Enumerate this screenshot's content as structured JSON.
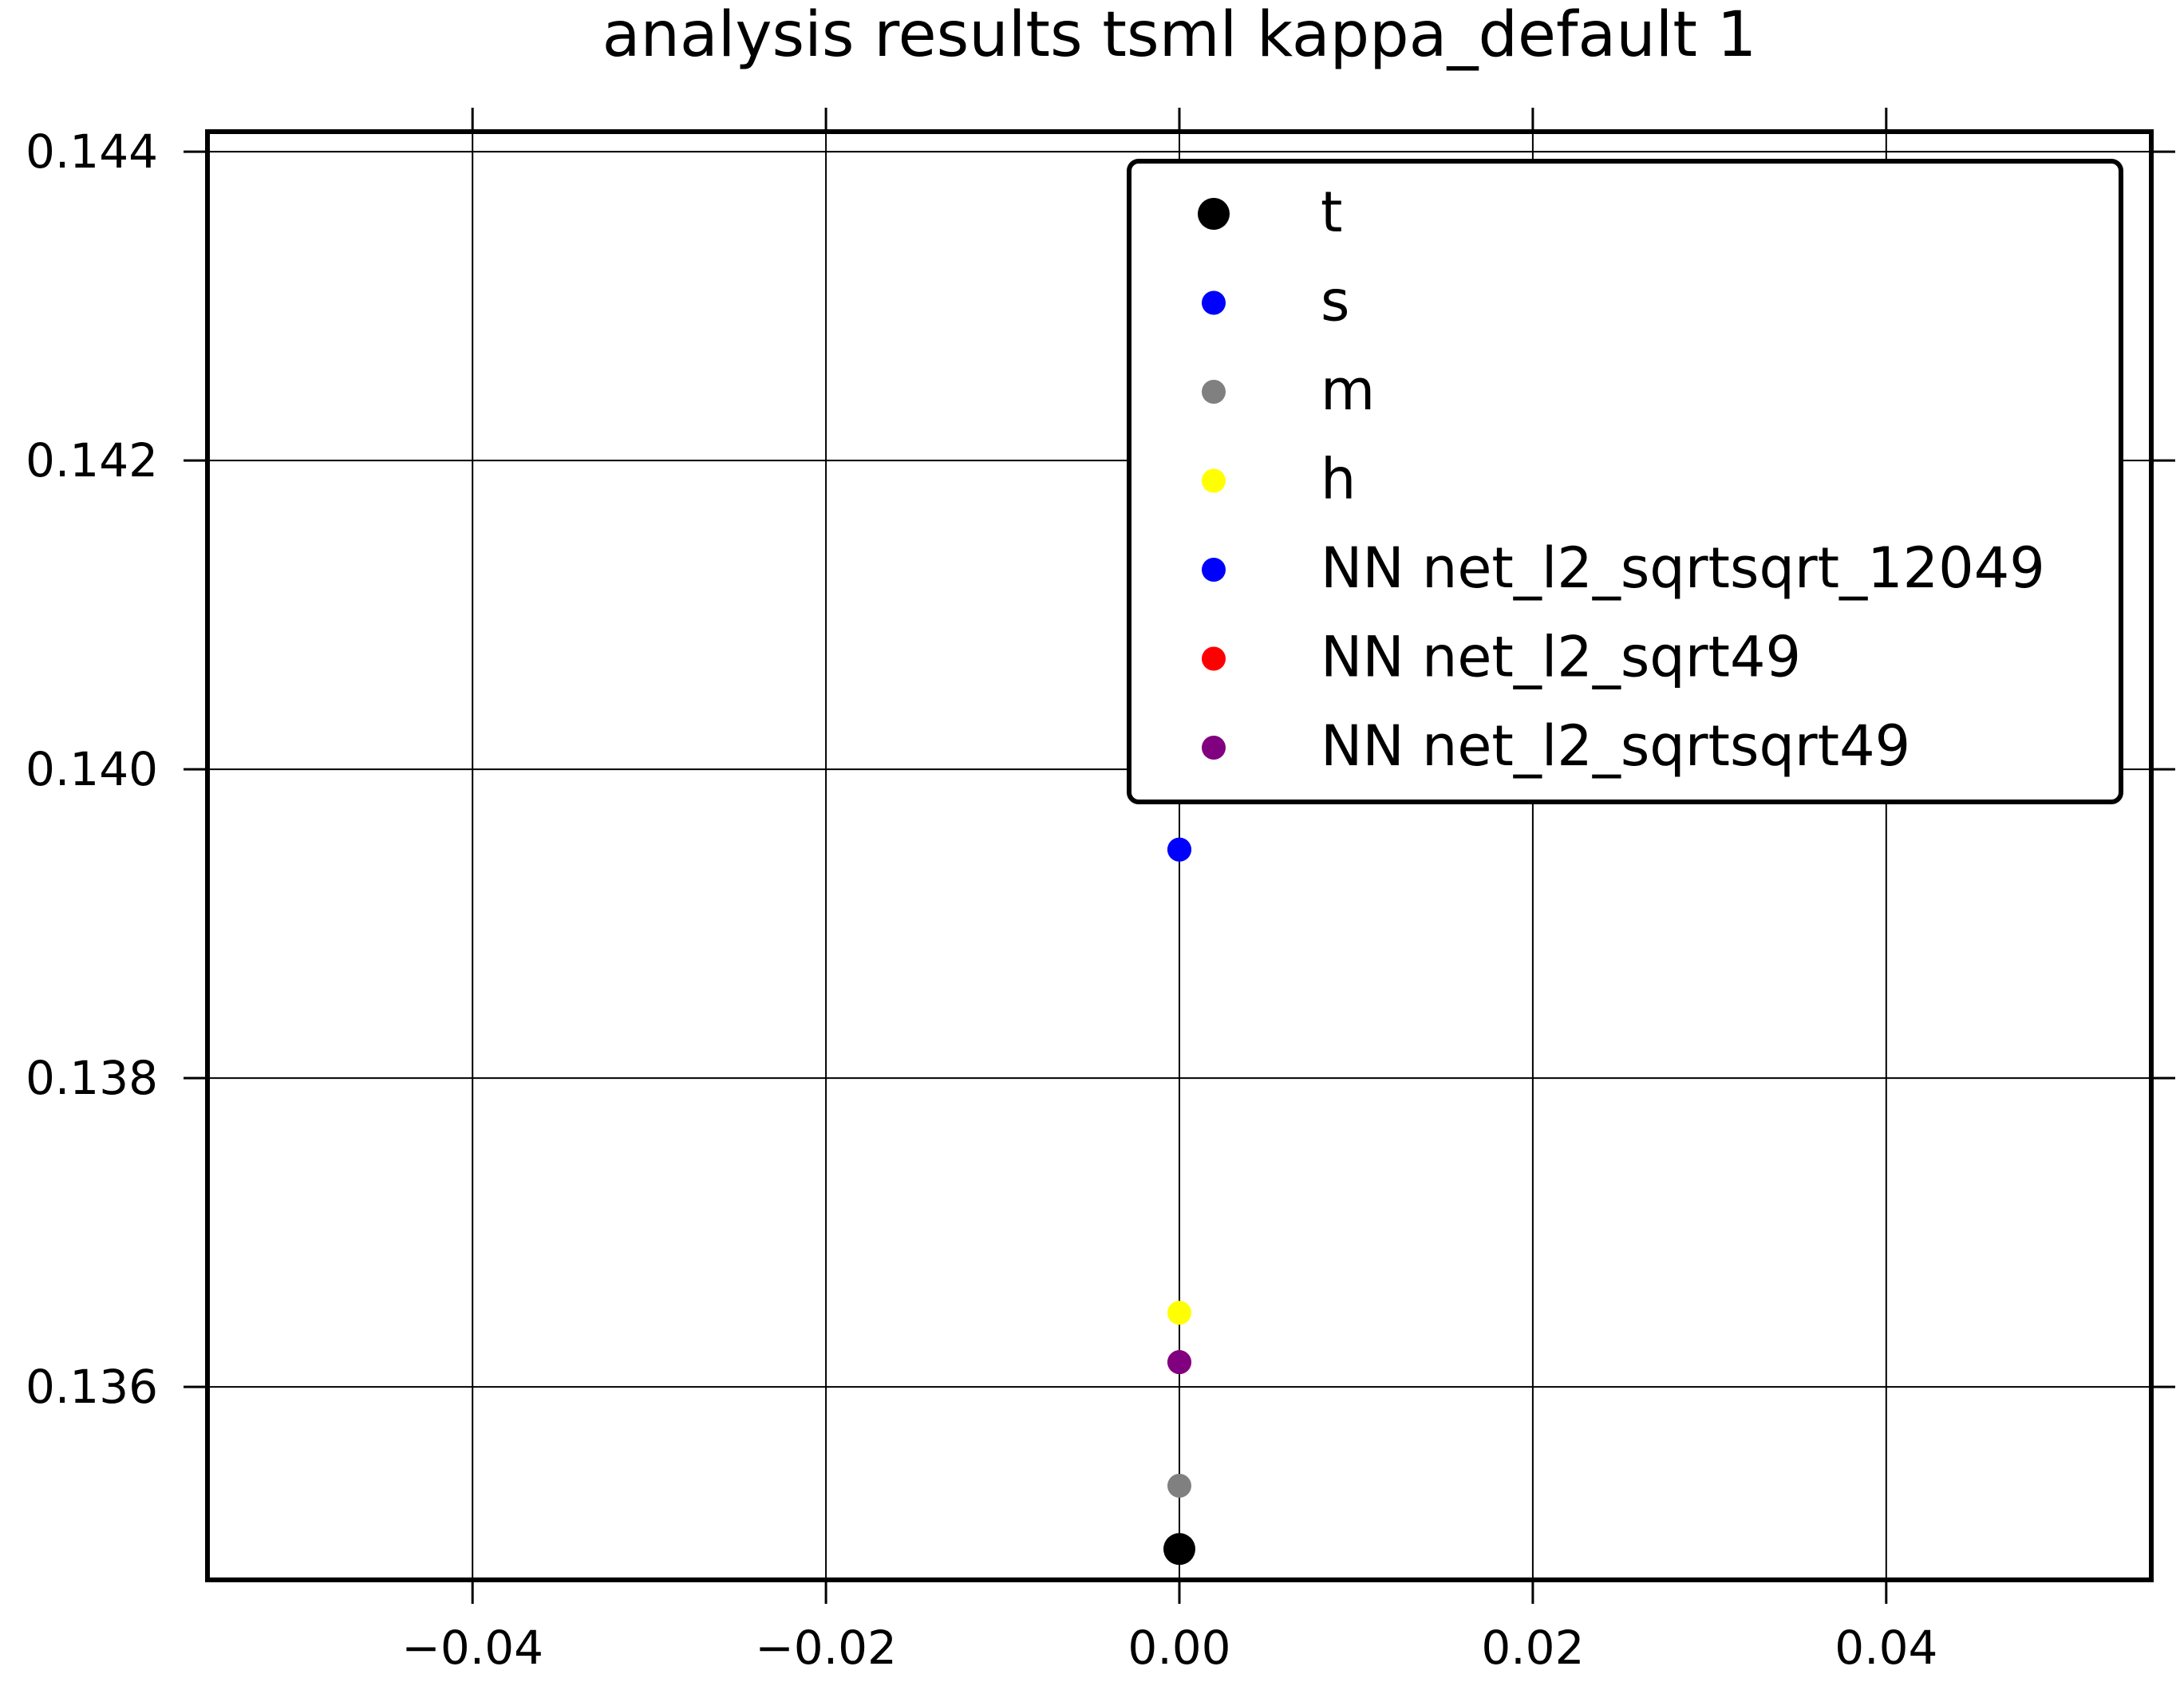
{
  "chart_data": {
    "type": "scatter",
    "title": "analysis results tsml  kappa_default 1",
    "xlabel": "",
    "ylabel": "",
    "xlim": [
      -0.055,
      0.055
    ],
    "ylim": [
      0.13475,
      0.14413
    ],
    "xticks": [
      -0.04,
      -0.02,
      0.0,
      0.02,
      0.04
    ],
    "xtick_labels": [
      "−0.04",
      "−0.02",
      "0.00",
      "0.02",
      "0.04"
    ],
    "yticks": [
      0.136,
      0.138,
      0.14,
      0.142,
      0.144
    ],
    "ytick_labels": [
      "0.136",
      "0.138",
      "0.140",
      "0.142",
      "0.144"
    ],
    "grid": true,
    "legend_position": "top-right",
    "series": [
      {
        "name": "t",
        "color": "#000000",
        "size": "large",
        "x": [
          0.0
        ],
        "y": [
          0.13495
        ]
      },
      {
        "name": "s",
        "color": "#0000ff",
        "size": "small",
        "x": [
          0.0
        ],
        "y": [
          0.13948
        ]
      },
      {
        "name": "m",
        "color": "#808080",
        "size": "small",
        "x": [
          0.0
        ],
        "y": [
          0.13536
        ]
      },
      {
        "name": "h",
        "color": "#ffff00",
        "size": "small",
        "x": [
          0.0
        ],
        "y": [
          0.13648
        ]
      },
      {
        "name": "NN net_l2_sqrtsqrt_12049",
        "color": "#0000ff",
        "size": "small",
        "x": [
          0.0
        ],
        "y": [
          0.13948
        ]
      },
      {
        "name": "NN net_l2_sqrt49",
        "color": "#ff0000",
        "size": "small",
        "x": [
          0.0
        ],
        "y": [
          0.13616
        ]
      },
      {
        "name": "NN net_l2_sqrtsqrt49",
        "color": "#800080",
        "size": "small",
        "x": [
          0.0
        ],
        "y": [
          0.13616
        ]
      }
    ]
  }
}
